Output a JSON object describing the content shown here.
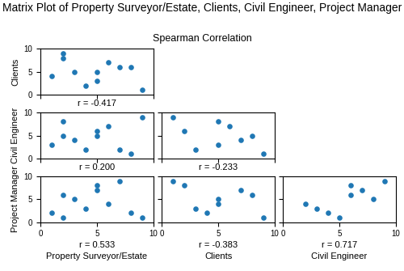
{
  "title": "Matrix Plot of Property Surveyor/Estate, Clients, Civil Engineer, Project Manager",
  "subtitle": "Spearman Correlation",
  "chart_data": [
    {
      "type": "scatter",
      "x": [
        1,
        2,
        2,
        3,
        4,
        5,
        5,
        6,
        7,
        8,
        9
      ],
      "values": [
        4,
        9,
        8,
        5,
        2,
        3,
        5,
        7,
        6,
        6,
        1
      ],
      "ylabel": "Clients",
      "annotation": "r = -0.417",
      "tick_labels": "y",
      "xlim": [
        0,
        10
      ],
      "ylim": [
        0,
        10
      ],
      "xticks": [
        0,
        5,
        10
      ],
      "yticks": [
        0,
        5,
        10
      ]
    },
    {
      "type": "scatter",
      "x": [
        1,
        2,
        2,
        3,
        4,
        5,
        5,
        6,
        7,
        8,
        9
      ],
      "values": [
        3,
        5,
        8,
        4,
        2,
        6,
        5,
        7,
        2,
        1,
        9
      ],
      "ylabel": "Civil Engineer",
      "annotation": "r = 0.200",
      "tick_labels": "y",
      "xlim": [
        0,
        10
      ],
      "ylim": [
        0,
        10
      ],
      "xticks": [
        0,
        5,
        10
      ],
      "yticks": [
        0,
        5,
        10
      ]
    },
    {
      "type": "scatter",
      "x": [
        1,
        2,
        3,
        5,
        5,
        6,
        7,
        8,
        9
      ],
      "values": [
        9,
        6,
        2,
        3,
        8,
        7,
        4,
        5,
        1
      ],
      "annotation": "r = -0.233",
      "tick_labels": false,
      "xlim": [
        0,
        10
      ],
      "ylim": [
        0,
        10
      ],
      "xticks": [
        0,
        5,
        10
      ],
      "yticks": [
        0,
        5,
        10
      ]
    },
    {
      "type": "scatter",
      "x": [
        1,
        2,
        2,
        3,
        4,
        5,
        5,
        6,
        7,
        8,
        9
      ],
      "values": [
        2,
        6,
        1,
        5,
        3,
        8,
        7,
        4,
        9,
        2,
        1
      ],
      "xlabel": "Property Surveyor/Estate",
      "ylabel": "Project Manager",
      "annotation": "r = 0.533",
      "xlim": [
        0,
        10
      ],
      "ylim": [
        0,
        10
      ],
      "xticks": [
        0,
        5,
        10
      ],
      "yticks": [
        0,
        5,
        10
      ]
    },
    {
      "type": "scatter",
      "x": [
        1,
        2,
        3,
        4,
        5,
        5,
        7,
        8,
        9
      ],
      "values": [
        9,
        8,
        3,
        2,
        5,
        4,
        7,
        6,
        1
      ],
      "xlabel": "Clients",
      "annotation": "r = -0.383",
      "tick_labels": "x",
      "xlim": [
        0,
        10
      ],
      "ylim": [
        0,
        10
      ],
      "xticks": [
        0,
        5,
        10
      ],
      "yticks": [
        0,
        5,
        10
      ]
    },
    {
      "type": "scatter",
      "x": [
        2,
        3,
        4,
        5,
        6,
        6,
        7,
        8,
        9
      ],
      "values": [
        4,
        3,
        2,
        1,
        6,
        8,
        7,
        5,
        9
      ],
      "xlabel": "Civil Engineer",
      "annotation": "r = 0.717",
      "tick_labels": "x",
      "xlim": [
        0,
        10
      ],
      "ylim": [
        0,
        10
      ],
      "xticks": [
        0,
        5,
        10
      ],
      "yticks": [
        0,
        5,
        10
      ]
    }
  ]
}
